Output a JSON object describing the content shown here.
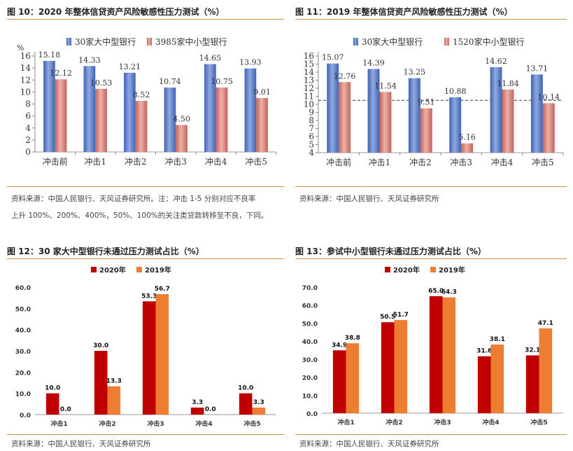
{
  "colors": {
    "blue": "#5b7fc8",
    "salmon": "#d8887c",
    "red": "#c00000",
    "orange": "#ed7d31",
    "rule": "#c9913a"
  },
  "fig10": {
    "caption": "图 10：2020 年整体信贷资产风险敏感性压力测试（%）",
    "source_line1": "资料来源：中国人民银行、天风证券研究所。注：冲击 1-5 分别对应不良率",
    "source_line2": "上升 100%、200%、400%，50%、100%的关注类贷款转移至不良，下同。"
  },
  "fig11": {
    "caption": "图 11：2019 年整体信贷资产风险敏感性压力测试（%）",
    "source": "资料来源：中国人民银行、天风证券研究所"
  },
  "fig12": {
    "caption": "图 12：30 家大中型银行未通过压力测试占比（%）",
    "source": "资料来源：中国人民银行、天风证券研究所"
  },
  "fig13": {
    "caption": "图 13：参试中小型银行未通过压力测试占比（%）",
    "source": "资料来源：中国人民银行、天风证券研究所"
  },
  "chart_data": [
    {
      "id": "fig10",
      "type": "bar",
      "ylabel": "%",
      "ylim": [
        0,
        16
      ],
      "yticks": [
        "0",
        "2",
        "4",
        "6",
        "8",
        "10",
        "12",
        "14",
        "16"
      ],
      "categories": [
        "冲击前",
        "冲击1",
        "冲击2",
        "冲击3",
        "冲击4",
        "冲击5"
      ],
      "series": [
        {
          "name": "30家大中型银行",
          "values": [
            15.18,
            14.33,
            13.21,
            10.74,
            14.65,
            13.93
          ]
        },
        {
          "name": "3985家中小型银行",
          "values": [
            12.12,
            10.53,
            8.52,
            4.5,
            10.75,
            9.01
          ]
        }
      ],
      "value_labels": [
        [
          "15.18",
          "14.33",
          "13.21",
          "10.74",
          "14.65",
          "13.93"
        ],
        [
          "12.12",
          "10.53",
          "8.52",
          "4.50",
          "10.75",
          "9.01"
        ]
      ],
      "legend": "top"
    },
    {
      "id": "fig11",
      "type": "bar",
      "ylim": [
        4,
        16
      ],
      "yticks": [
        "4",
        "5",
        "6",
        "7",
        "8",
        "9",
        "10",
        "11",
        "12",
        "13",
        "14",
        "15",
        "16"
      ],
      "categories": [
        "冲击前",
        "冲击1",
        "冲击2",
        "冲击3",
        "冲击4",
        "冲击5"
      ],
      "series": [
        {
          "name": "30家大中型银行",
          "values": [
            15.07,
            14.39,
            13.25,
            10.88,
            14.62,
            13.71
          ]
        },
        {
          "name": "1520家中小型银行",
          "values": [
            12.76,
            11.54,
            9.51,
            5.16,
            11.84,
            10.14
          ]
        }
      ],
      "value_labels": [
        [
          "15.07",
          "14.39",
          "13.25",
          "10.88",
          "14.62",
          "13.71"
        ],
        [
          "12.76",
          "11.54",
          "9.51",
          "5.16",
          "11.84",
          "10.14"
        ]
      ],
      "reference_line": 10.5,
      "legend": "top"
    },
    {
      "id": "fig12",
      "type": "bar",
      "ylim": [
        0,
        60
      ],
      "yticks": [
        "0.0",
        "10.0",
        "20.0",
        "30.0",
        "40.0",
        "50.0",
        "60.0"
      ],
      "categories": [
        "冲击1",
        "冲击2",
        "冲击3",
        "冲击4",
        "冲击5"
      ],
      "series": [
        {
          "name": "2020年",
          "values": [
            10.0,
            30.0,
            53.3,
            3.3,
            10.0
          ]
        },
        {
          "name": "2019年",
          "values": [
            0.0,
            13.3,
            56.7,
            0.0,
            3.3
          ]
        }
      ],
      "value_labels": [
        [
          "10.0",
          "30.0",
          "53.3",
          "3.3",
          "10.0"
        ],
        [
          "0.0",
          "13.3",
          "56.7",
          "0.0",
          "3.3"
        ]
      ],
      "legend": "top"
    },
    {
      "id": "fig13",
      "type": "bar",
      "ylim": [
        0,
        70
      ],
      "yticks": [
        "0.0",
        "10.0",
        "20.0",
        "30.0",
        "40.0",
        "50.0",
        "60.0",
        "70.0"
      ],
      "categories": [
        "冲击1",
        "冲击2",
        "冲击3",
        "冲击4",
        "冲击5"
      ],
      "series": [
        {
          "name": "2020年",
          "values": [
            34.9,
            50.5,
            65.0,
            31.6,
            32.1
          ]
        },
        {
          "name": "2019年",
          "values": [
            38.8,
            51.7,
            64.3,
            38.1,
            47.1
          ]
        }
      ],
      "value_labels": [
        [
          "34.9",
          "50.5",
          "65.0",
          "31.6",
          "32.1"
        ],
        [
          "38.8",
          "51.7",
          "64.3",
          "38.1",
          "47.1"
        ]
      ],
      "legend": "top"
    }
  ]
}
